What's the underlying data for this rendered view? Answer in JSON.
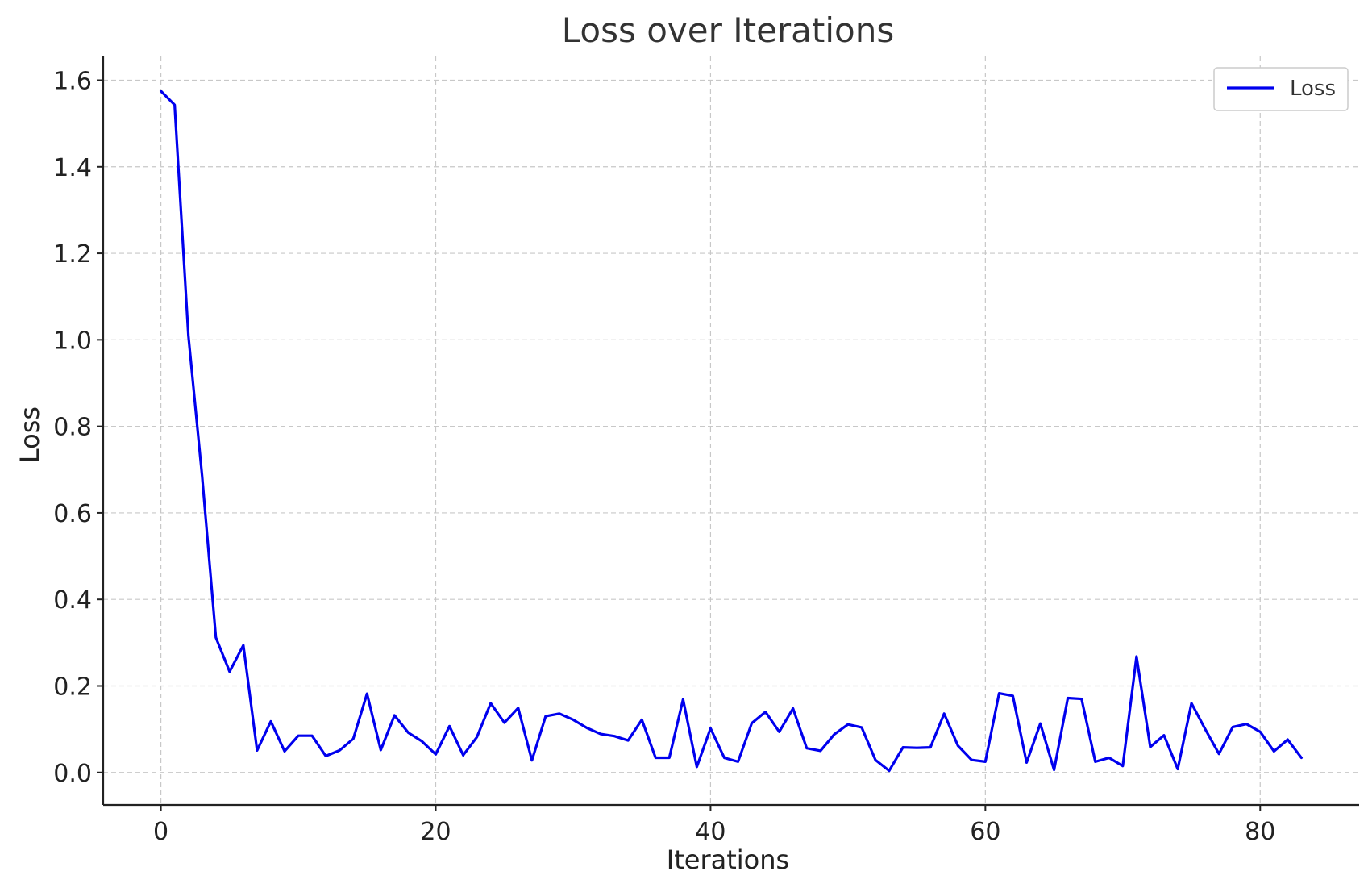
{
  "chart_data": {
    "type": "line",
    "title": "Loss over Iterations",
    "xlabel": "Iterations",
    "ylabel": "Loss",
    "xlim": [
      -4.2,
      87.2
    ],
    "ylim": [
      -0.075,
      1.655
    ],
    "xticks": [
      0,
      20,
      40,
      60,
      80
    ],
    "yticks": [
      0.0,
      0.2,
      0.4,
      0.6,
      0.8,
      1.0,
      1.2,
      1.4,
      1.6
    ],
    "ytick_labels": [
      "0.0",
      "0.2",
      "0.4",
      "0.6",
      "0.8",
      "1.0",
      "1.2",
      "1.4",
      "1.6"
    ],
    "grid": true,
    "legend_position": "top-right",
    "series": [
      {
        "name": "Loss",
        "color": "#0000ee",
        "x": [
          0,
          1,
          2,
          3,
          4,
          5,
          6,
          7,
          8,
          9,
          10,
          11,
          12,
          13,
          14,
          15,
          16,
          17,
          18,
          19,
          20,
          21,
          22,
          23,
          24,
          25,
          26,
          27,
          28,
          29,
          30,
          31,
          32,
          33,
          34,
          35,
          36,
          37,
          38,
          39,
          40,
          41,
          42,
          43,
          44,
          45,
          46,
          47,
          48,
          49,
          50,
          51,
          52,
          53,
          54,
          55,
          56,
          57,
          58,
          59,
          60,
          61,
          62,
          63,
          64,
          65,
          66,
          67,
          68,
          69,
          70,
          71,
          72,
          73,
          74,
          75,
          76,
          77,
          78,
          79,
          80,
          81,
          82,
          83
        ],
        "y": [
          1.575,
          1.543,
          1.01,
          0.685,
          0.312,
          0.233,
          0.294,
          0.051,
          0.118,
          0.049,
          0.085,
          0.085,
          0.038,
          0.051,
          0.078,
          0.182,
          0.052,
          0.132,
          0.092,
          0.072,
          0.042,
          0.107,
          0.04,
          0.082,
          0.16,
          0.115,
          0.149,
          0.028,
          0.13,
          0.136,
          0.122,
          0.103,
          0.089,
          0.084,
          0.074,
          0.122,
          0.034,
          0.034,
          0.169,
          0.013,
          0.102,
          0.034,
          0.025,
          0.114,
          0.14,
          0.094,
          0.148,
          0.056,
          0.05,
          0.088,
          0.111,
          0.104,
          0.029,
          0.004,
          0.058,
          0.057,
          0.058,
          0.136,
          0.062,
          0.029,
          0.025,
          0.183,
          0.177,
          0.023,
          0.113,
          0.006,
          0.172,
          0.17,
          0.025,
          0.034,
          0.015,
          0.268,
          0.059,
          0.086,
          0.008,
          0.16,
          0.1,
          0.043,
          0.105,
          0.112,
          0.094,
          0.049,
          0.076,
          0.034
        ]
      }
    ]
  }
}
